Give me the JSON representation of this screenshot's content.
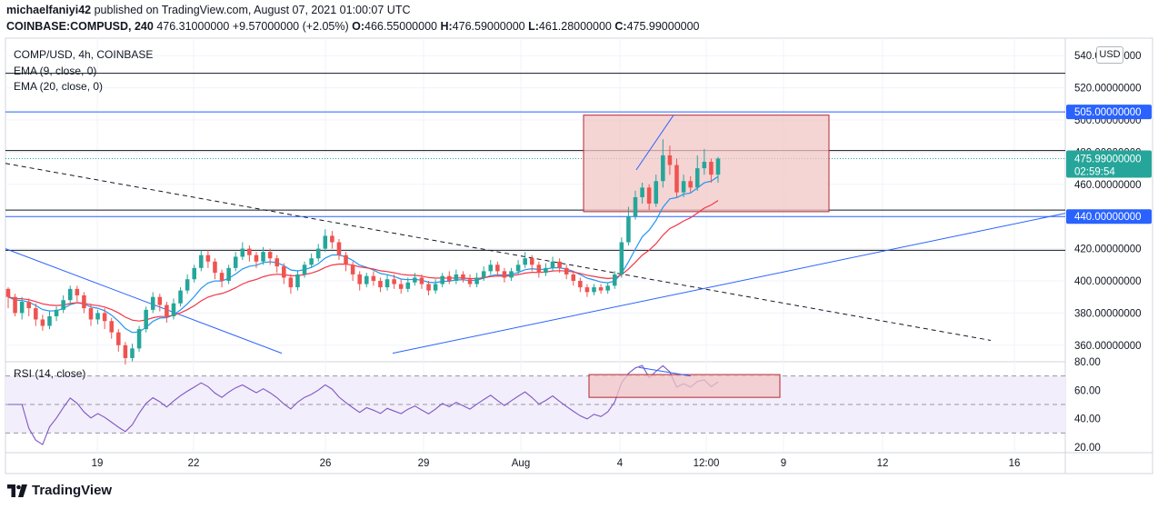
{
  "header": {
    "publisher_line": "michaelfaniyi42 published on TradingView.com, August 07, 2021 01:00:07 UTC",
    "publisher_name": "michaelfaniyi42",
    "published_rest": " published on TradingView.com, August 07, 2021 01:00:07 UTC",
    "symbol": "COINBASE:COMPUSD, 240",
    "last": "476.31000000",
    "change": "+9.57000000 (+2.05%)",
    "o_label": "O:",
    "o_value": "466.55000000",
    "h_label": "H:",
    "h_value": "476.59000000",
    "l_label": "L:",
    "l_value": "461.28000000",
    "c_label": "C:",
    "c_value": "475.99000000"
  },
  "legend": {
    "title": "COMP/USD, 4h, COINBASE",
    "ema9": "EMA (9, close, 0)",
    "ema20": "EMA (20, close, 0)",
    "rsi": "RSI (14, close)"
  },
  "price_axis": {
    "currency": "USD",
    "ticks": [
      "540.00000000",
      "520.00000000",
      "500.00000000",
      "480.00000000",
      "460.00000000",
      "420.00000000",
      "400.00000000",
      "380.00000000",
      "360.00000000"
    ],
    "tick_values": [
      540,
      520,
      500,
      480,
      460,
      420,
      400,
      380,
      360
    ],
    "current_price_label": "475.99000000",
    "countdown": "02:59:54",
    "level_505": "505.00000000",
    "level_440": "440.00000000"
  },
  "rsi_axis": {
    "ticks": [
      "80.00",
      "60.00",
      "40.00",
      "20.00"
    ],
    "tick_values": [
      80,
      60,
      40,
      20
    ]
  },
  "time_axis": {
    "labels": [
      "19",
      "22",
      "26",
      "29",
      "Aug",
      "4",
      "12:00",
      "9",
      "12",
      "16"
    ]
  },
  "colors": {
    "bull": "#26a69a",
    "bear": "#ef5350",
    "ema9": "#2196f3",
    "ema20": "#f23645",
    "blue_line": "#2962ff",
    "rsi_line": "#7e57c2",
    "rsi_fill": "#f3eefb",
    "zone_fill": "#f2c6c6",
    "zone_border": "#b22833"
  },
  "chart_data": {
    "type": "candlestick",
    "title": "COMP/USD, 4h, COINBASE",
    "price_range": [
      350,
      545
    ],
    "horizontal_levels": [
      529,
      505,
      481,
      444,
      440,
      419
    ],
    "blue_levels": [
      505,
      440
    ],
    "zone": {
      "price_top": 503,
      "price_bottom": 443
    },
    "rsi_zone": {
      "rsi_top": 71,
      "rsi_bottom": 55
    },
    "rsi_range": [
      18,
      82
    ],
    "rsi_levels": [
      70,
      50,
      30
    ],
    "candles_approx": [
      [
        395,
        390,
        396,
        383
      ],
      [
        390,
        380,
        392,
        378
      ],
      [
        380,
        387,
        390,
        376
      ],
      [
        387,
        383,
        389,
        378
      ],
      [
        383,
        376,
        386,
        372
      ],
      [
        376,
        372,
        379,
        369
      ],
      [
        372,
        378,
        381,
        370
      ],
      [
        378,
        382,
        384,
        375
      ],
      [
        382,
        388,
        391,
        380
      ],
      [
        388,
        395,
        397,
        386
      ],
      [
        395,
        391,
        397,
        387
      ],
      [
        391,
        383,
        393,
        380
      ],
      [
        383,
        376,
        386,
        372
      ],
      [
        376,
        380,
        382,
        373
      ],
      [
        380,
        375,
        383,
        370
      ],
      [
        375,
        368,
        377,
        364
      ],
      [
        368,
        360,
        370,
        356
      ],
      [
        360,
        352,
        362,
        348
      ],
      [
        352,
        358,
        361,
        350
      ],
      [
        358,
        370,
        372,
        356
      ],
      [
        370,
        382,
        384,
        368
      ],
      [
        382,
        390,
        393,
        380
      ],
      [
        390,
        385,
        392,
        381
      ],
      [
        385,
        378,
        387,
        374
      ],
      [
        378,
        386,
        389,
        376
      ],
      [
        386,
        394,
        396,
        384
      ],
      [
        394,
        401,
        404,
        392
      ],
      [
        401,
        408,
        410,
        399
      ],
      [
        408,
        416,
        419,
        406
      ],
      [
        416,
        412,
        419,
        408
      ],
      [
        412,
        405,
        414,
        401
      ],
      [
        405,
        400,
        407,
        396
      ],
      [
        400,
        408,
        410,
        398
      ],
      [
        408,
        415,
        418,
        406
      ],
      [
        415,
        420,
        424,
        413
      ],
      [
        420,
        416,
        422,
        412
      ],
      [
        416,
        412,
        418,
        408
      ],
      [
        412,
        418,
        421,
        410
      ],
      [
        418,
        414,
        420,
        410
      ],
      [
        414,
        409,
        416,
        405
      ],
      [
        409,
        402,
        411,
        398
      ],
      [
        402,
        396,
        404,
        392
      ],
      [
        396,
        404,
        406,
        394
      ],
      [
        404,
        410,
        412,
        402
      ],
      [
        410,
        414,
        417,
        408
      ],
      [
        414,
        420,
        423,
        412
      ],
      [
        420,
        428,
        432,
        418
      ],
      [
        428,
        424,
        431,
        420
      ],
      [
        424,
        416,
        426,
        413
      ],
      [
        416,
        410,
        418,
        406
      ],
      [
        410,
        404,
        412,
        400
      ],
      [
        404,
        398,
        406,
        394
      ],
      [
        398,
        403,
        405,
        396
      ],
      [
        403,
        400,
        406,
        397
      ],
      [
        400,
        396,
        402,
        393
      ],
      [
        396,
        401,
        404,
        394
      ],
      [
        401,
        398,
        404,
        395
      ],
      [
        398,
        395,
        401,
        392
      ],
      [
        395,
        399,
        402,
        393
      ],
      [
        399,
        402,
        405,
        397
      ],
      [
        402,
        398,
        404,
        395
      ],
      [
        398,
        394,
        400,
        391
      ],
      [
        394,
        398,
        401,
        392
      ],
      [
        398,
        403,
        405,
        396
      ],
      [
        403,
        400,
        406,
        398
      ],
      [
        400,
        404,
        407,
        398
      ],
      [
        404,
        401,
        406,
        399
      ],
      [
        401,
        398,
        404,
        396
      ],
      [
        398,
        402,
        405,
        396
      ],
      [
        402,
        406,
        409,
        400
      ],
      [
        406,
        410,
        413,
        404
      ],
      [
        410,
        406,
        412,
        403
      ],
      [
        406,
        402,
        408,
        399
      ],
      [
        402,
        406,
        408,
        400
      ],
      [
        406,
        410,
        413,
        404
      ],
      [
        410,
        414,
        418,
        408
      ],
      [
        414,
        410,
        416,
        406
      ],
      [
        410,
        405,
        412,
        402
      ],
      [
        405,
        408,
        411,
        403
      ],
      [
        408,
        412,
        415,
        406
      ],
      [
        412,
        408,
        414,
        405
      ],
      [
        408,
        404,
        410,
        401
      ],
      [
        404,
        400,
        406,
        397
      ],
      [
        400,
        396,
        402,
        393
      ],
      [
        396,
        393,
        398,
        390
      ],
      [
        393,
        396,
        398,
        391
      ],
      [
        396,
        394,
        398,
        392
      ],
      [
        394,
        397,
        399,
        392
      ],
      [
        397,
        404,
        406,
        395
      ],
      [
        404,
        424,
        427,
        402
      ],
      [
        424,
        440,
        446,
        422
      ],
      [
        440,
        452,
        456,
        438
      ],
      [
        452,
        458,
        461,
        448
      ],
      [
        458,
        448,
        460,
        444
      ],
      [
        448,
        462,
        466,
        446
      ],
      [
        462,
        478,
        488,
        458
      ],
      [
        478,
        472,
        484,
        466
      ],
      [
        472,
        455,
        476,
        452
      ],
      [
        455,
        462,
        466,
        452
      ],
      [
        462,
        458,
        465,
        455
      ],
      [
        458,
        470,
        478,
        456
      ],
      [
        470,
        474,
        482,
        466
      ],
      [
        474,
        466,
        476,
        461
      ],
      [
        466,
        476,
        477,
        461
      ]
    ]
  }
}
